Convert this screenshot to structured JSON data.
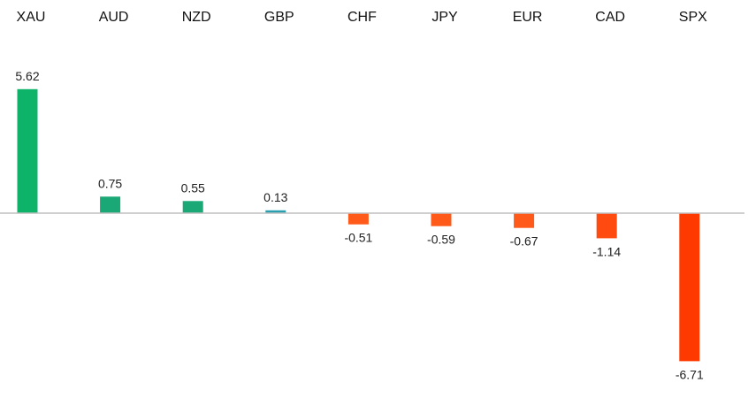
{
  "chart_data": {
    "type": "bar",
    "categories": [
      "XAU",
      "AUD",
      "NZD",
      "GBP",
      "CHF",
      "JPY",
      "EUR",
      "CAD",
      "SPX"
    ],
    "values": [
      5.62,
      0.75,
      0.55,
      0.13,
      -0.51,
      -0.59,
      -0.67,
      -1.14,
      -6.71
    ],
    "data_labels": [
      "5.62",
      "0.75",
      "0.55",
      "0.13",
      "-0.51",
      "-0.59",
      "-0.67",
      "-1.14",
      "-6.71"
    ],
    "bar_colors": [
      "#0db368",
      "#1aa876",
      "#1aa876",
      "#2a9fb0",
      "#ff5a1a",
      "#ff5a1a",
      "#ff5a1a",
      "#ff4a10",
      "#ff3a00"
    ],
    "title": "",
    "xlabel": "",
    "ylabel": "",
    "category_label_position": "top",
    "grid": false,
    "legend": "none"
  }
}
